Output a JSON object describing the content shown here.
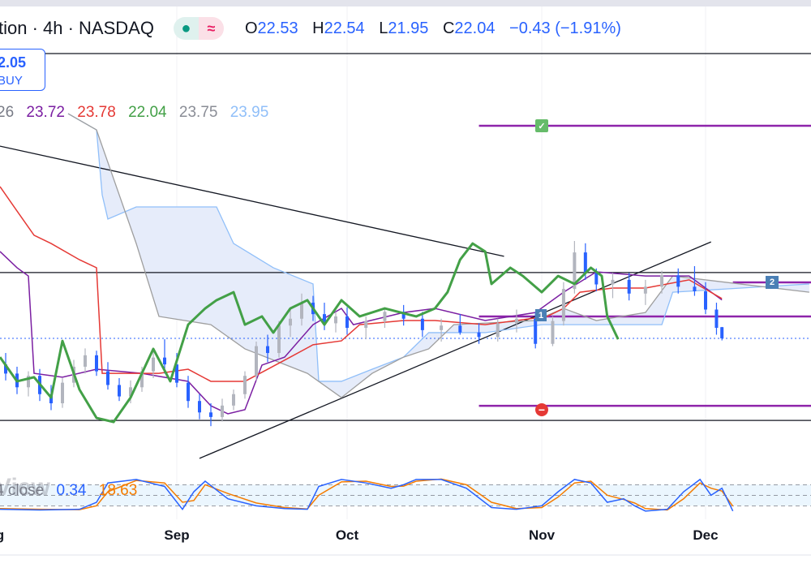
{
  "header": {
    "title": "tion · 4h · NASDAQ",
    "badge_dot": "●",
    "badge_wave": "≈",
    "ohlc": {
      "o_label": "O",
      "o": "22.53",
      "h_label": "H",
      "h": "22.54",
      "l_label": "L",
      "l": "21.95",
      "c_label": "C",
      "c": "22.04",
      "change": "−0.43 (−1.91%)"
    }
  },
  "buy_box": {
    "price": "2.05",
    "label": "BUY"
  },
  "ichimoku_values": [
    {
      "text": "26",
      "color": "#787b86"
    },
    {
      "text": "23.72",
      "color": "#7b1fa2"
    },
    {
      "text": "23.78",
      "color": "#e53935"
    },
    {
      "text": "22.04",
      "color": "#43a047"
    },
    {
      "text": "23.75",
      "color": "#8a8d96"
    },
    {
      "text": "23.95",
      "color": "#90bff9"
    }
  ],
  "stoch_label": {
    "watermark": "View",
    "name": "4 close",
    "k": "0.34",
    "d": "18.63",
    "k_color": "#2962ff",
    "d_color": "#f57c00"
  },
  "x_axis": [
    "g",
    "Sep",
    "Oct",
    "Nov",
    "Dec"
  ],
  "markers": {
    "target": "✓",
    "stop": "−",
    "entry": "1",
    "level2": "2"
  },
  "chart_data": {
    "type": "candlestick",
    "colors": {
      "up": "#b2b5be",
      "down": "#2962ff",
      "lagging": "#43a047",
      "conversion": "#e53935",
      "base": "#7b1fa2",
      "span_a": "#90bff9",
      "span_b": "#9e9e9e",
      "cloud": "#e6ecfa"
    },
    "candles": [
      [
        "08-02",
        20.9,
        21.4,
        20.2,
        20.5
      ],
      [
        "08-04",
        20.5,
        20.8,
        19.6,
        19.9
      ],
      [
        "08-06",
        19.9,
        20.6,
        19.5,
        20.4
      ],
      [
        "08-08",
        20.4,
        20.7,
        19.3,
        19.6
      ],
      [
        "08-10",
        19.6,
        20.0,
        18.9,
        19.2
      ],
      [
        "08-12",
        19.2,
        20.3,
        19.0,
        20.1
      ],
      [
        "08-14",
        20.1,
        21.1,
        19.9,
        20.8
      ],
      [
        "08-16",
        20.8,
        21.6,
        20.5,
        21.3
      ],
      [
        "08-18",
        21.3,
        21.5,
        20.4,
        20.6
      ],
      [
        "08-20",
        20.6,
        21.0,
        19.8,
        20.0
      ],
      [
        "08-22",
        20.0,
        20.3,
        19.3,
        19.5
      ],
      [
        "08-24",
        19.5,
        20.2,
        19.2,
        19.9
      ],
      [
        "08-26",
        19.9,
        20.8,
        19.7,
        20.6
      ],
      [
        "08-28",
        20.6,
        21.6,
        20.3,
        21.2
      ],
      [
        "08-30",
        21.2,
        22.0,
        20.5,
        20.9
      ],
      [
        "09-01",
        20.9,
        21.4,
        19.9,
        20.1
      ],
      [
        "09-03",
        20.1,
        20.4,
        19.0,
        19.3
      ],
      [
        "09-05",
        19.3,
        19.6,
        18.5,
        18.8
      ],
      [
        "09-07",
        18.8,
        19.2,
        18.2,
        18.6
      ],
      [
        "09-09",
        18.6,
        19.4,
        18.4,
        19.1
      ],
      [
        "09-11",
        19.1,
        19.8,
        18.9,
        19.6
      ],
      [
        "09-13",
        19.6,
        20.6,
        19.4,
        20.4
      ],
      [
        "09-15",
        20.4,
        21.9,
        20.2,
        21.7
      ],
      [
        "09-17",
        21.7,
        22.2,
        21.0,
        21.4
      ],
      [
        "09-19",
        21.4,
        22.8,
        21.2,
        22.6
      ],
      [
        "09-21",
        22.6,
        23.3,
        22.1,
        22.9
      ],
      [
        "09-23",
        22.9,
        24.0,
        22.6,
        23.6
      ],
      [
        "09-25",
        23.6,
        23.9,
        22.8,
        23.1
      ],
      [
        "09-27",
        23.1,
        23.6,
        22.4,
        22.7
      ],
      [
        "09-29",
        22.7,
        23.2,
        22.3,
        23.0
      ],
      [
        "10-01",
        23.0,
        23.4,
        22.2,
        22.5
      ],
      [
        "10-04",
        22.5,
        23.0,
        22.0,
        22.8
      ],
      [
        "10-07",
        22.8,
        23.4,
        22.5,
        23.2
      ],
      [
        "10-10",
        23.2,
        23.5,
        22.6,
        22.9
      ],
      [
        "10-13",
        22.9,
        23.2,
        22.1,
        22.4
      ],
      [
        "10-16",
        22.4,
        22.9,
        21.9,
        22.6
      ],
      [
        "10-19",
        22.6,
        23.1,
        22.2,
        22.3
      ],
      [
        "10-22",
        22.3,
        22.7,
        21.8,
        22.1
      ],
      [
        "10-25",
        22.1,
        22.9,
        21.9,
        22.7
      ],
      [
        "10-28",
        22.7,
        23.3,
        22.3,
        22.9
      ],
      [
        "10-31",
        22.9,
        23.2,
        21.6,
        21.8
      ],
      [
        "11-03",
        21.8,
        23.0,
        21.7,
        22.8
      ],
      [
        "11-05",
        22.8,
        24.5,
        22.6,
        24.2
      ],
      [
        "11-07",
        24.2,
        26.3,
        24.0,
        25.8
      ],
      [
        "11-09",
        25.8,
        26.2,
        24.6,
        24.9
      ],
      [
        "11-11",
        24.9,
        25.1,
        24.1,
        24.4
      ],
      [
        "11-14",
        24.4,
        24.9,
        23.8,
        24.6
      ],
      [
        "11-17",
        24.6,
        24.9,
        23.7,
        24.0
      ],
      [
        "11-20",
        24.0,
        24.6,
        23.5,
        24.3
      ],
      [
        "11-23",
        24.3,
        25.0,
        24.0,
        24.8
      ],
      [
        "11-26",
        24.8,
        25.1,
        24.0,
        24.3
      ],
      [
        "11-29",
        24.3,
        25.2,
        23.9,
        24.1
      ],
      [
        "12-01",
        24.1,
        24.5,
        23.1,
        23.3
      ],
      [
        "12-03",
        23.3,
        23.6,
        22.2,
        22.5
      ],
      [
        "12-04",
        22.53,
        22.54,
        21.95,
        22.04
      ]
    ],
    "lines": {
      "lagging": [
        [
          "08-01",
          21.22
        ],
        [
          "08-04",
          20.16
        ],
        [
          "08-07",
          20.34
        ],
        [
          "08-10",
          19.45
        ],
        [
          "08-12",
          21.93
        ],
        [
          "08-15",
          19.8
        ],
        [
          "08-18",
          18.56
        ],
        [
          "08-21",
          18.38
        ],
        [
          "08-24",
          19.45
        ],
        [
          "08-28",
          21.58
        ],
        [
          "08-31",
          20.16
        ],
        [
          "09-03",
          22.64
        ],
        [
          "09-06",
          23.35
        ],
        [
          "09-08",
          23.71
        ],
        [
          "09-11",
          24.06
        ],
        [
          "09-13",
          22.64
        ],
        [
          "09-16",
          23.0
        ],
        [
          "09-18",
          22.29
        ],
        [
          "09-21",
          23.35
        ],
        [
          "09-24",
          23.71
        ],
        [
          "09-27",
          22.64
        ],
        [
          "09-30",
          23.71
        ],
        [
          "10-03",
          23.0
        ],
        [
          "10-07",
          23.35
        ],
        [
          "10-12",
          23.0
        ],
        [
          "10-15",
          23.35
        ],
        [
          "10-17",
          24.06
        ],
        [
          "10-19",
          25.48
        ],
        [
          "10-21",
          26.19
        ],
        [
          "10-23",
          25.84
        ],
        [
          "10-24",
          24.42
        ],
        [
          "10-27",
          25.13
        ],
        [
          "10-29",
          24.77
        ],
        [
          "11-01",
          24.06
        ],
        [
          "11-04",
          24.77
        ],
        [
          "11-07",
          24.42
        ],
        [
          "11-10",
          25.13
        ],
        [
          "11-12",
          24.77
        ],
        [
          "11-13",
          23.0
        ],
        [
          "11-15",
          22.0
        ]
      ],
      "conversion": [
        [
          "08-01",
          28.68
        ],
        [
          "08-04",
          27.61
        ],
        [
          "08-07",
          26.55
        ],
        [
          "08-10",
          26.19
        ],
        [
          "08-15",
          25.48
        ],
        [
          "08-18",
          25.13
        ],
        [
          "08-19",
          20.51
        ],
        [
          "08-29",
          20.51
        ],
        [
          "09-03",
          20.69
        ],
        [
          "09-07",
          20.16
        ],
        [
          "09-13",
          20.16
        ],
        [
          "09-17",
          20.69
        ],
        [
          "09-21",
          21.22
        ],
        [
          "09-25",
          21.76
        ],
        [
          "09-30",
          21.93
        ],
        [
          "10-03",
          22.64
        ],
        [
          "10-10",
          22.82
        ],
        [
          "10-15",
          22.82
        ],
        [
          "10-23",
          22.64
        ],
        [
          "10-28",
          22.82
        ],
        [
          "11-02",
          23.0
        ],
        [
          "11-05",
          23.35
        ],
        [
          "11-08",
          24.06
        ],
        [
          "11-14",
          24.24
        ],
        [
          "11-20",
          24.24
        ],
        [
          "11-28",
          24.6
        ],
        [
          "12-04",
          23.78
        ]
      ],
      "base": [
        [
          "08-01",
          25.84
        ],
        [
          "08-04",
          25.13
        ],
        [
          "08-06",
          24.77
        ],
        [
          "08-07",
          20.51
        ],
        [
          "08-12",
          20.34
        ],
        [
          "08-18",
          20.69
        ],
        [
          "08-26",
          20.51
        ],
        [
          "09-03",
          20.16
        ],
        [
          "09-07",
          19.09
        ],
        [
          "09-10",
          18.74
        ],
        [
          "09-13",
          18.92
        ],
        [
          "09-16",
          20.87
        ],
        [
          "09-20",
          21.22
        ],
        [
          "09-25",
          22.64
        ],
        [
          "09-30",
          23.35
        ],
        [
          "10-02",
          22.64
        ],
        [
          "10-10",
          23.17
        ],
        [
          "10-15",
          23.35
        ],
        [
          "10-23",
          22.82
        ],
        [
          "10-31",
          23.17
        ],
        [
          "11-05",
          24.06
        ],
        [
          "11-11",
          24.95
        ],
        [
          "11-20",
          24.77
        ],
        [
          "11-28",
          24.77
        ],
        [
          "12-04",
          23.72
        ]
      ],
      "span_a": [
        [
          "08-13",
          31.87
        ],
        [
          "08-18",
          31.16
        ],
        [
          "08-19",
          28.32
        ],
        [
          "08-20",
          27.26
        ],
        [
          "08-25",
          27.79
        ],
        [
          "09-08",
          27.79
        ],
        [
          "09-11",
          26.19
        ],
        [
          "09-18",
          25.13
        ],
        [
          "09-25",
          24.42
        ],
        [
          "09-26",
          20.16
        ],
        [
          "09-30",
          20.16
        ],
        [
          "10-05",
          20.69
        ],
        [
          "10-10",
          21.22
        ],
        [
          "10-14",
          22.29
        ],
        [
          "10-23",
          22.29
        ],
        [
          "11-01",
          22.64
        ],
        [
          "11-08",
          22.64
        ],
        [
          "11-23",
          22.64
        ],
        [
          "11-25",
          24.06
        ],
        [
          "12-20",
          24.42
        ]
      ],
      "span_b": [
        [
          "08-13",
          31.87
        ],
        [
          "08-18",
          31.16
        ],
        [
          "08-25",
          26.19
        ],
        [
          "08-29",
          23.0
        ],
        [
          "09-07",
          22.64
        ],
        [
          "09-13",
          21.58
        ],
        [
          "09-24",
          20.51
        ],
        [
          "09-30",
          19.45
        ],
        [
          "10-05",
          20.51
        ],
        [
          "10-10",
          21.22
        ],
        [
          "10-14",
          21.58
        ],
        [
          "10-18",
          22.64
        ],
        [
          "10-31",
          22.82
        ],
        [
          "11-05",
          23.35
        ],
        [
          "11-11",
          22.82
        ],
        [
          "11-20",
          23.17
        ],
        [
          "11-25",
          24.77
        ],
        [
          "12-20",
          24.06
        ]
      ]
    },
    "horizontal_levels": [
      {
        "price": 34.5,
        "color": "#131722",
        "from": "08-01"
      },
      {
        "price": 31.34,
        "color": "#8e24aa",
        "from": "10-22",
        "marker": "target"
      },
      {
        "price": 24.92,
        "color": "#131722",
        "from": "08-01"
      },
      {
        "price": 24.49,
        "color": "#8e24aa",
        "from": "12-06",
        "marker": "level2"
      },
      {
        "price": 23.0,
        "color": "#8e24aa",
        "from": "10-22",
        "marker": "entry"
      },
      {
        "price": 19.09,
        "color": "#8e24aa",
        "from": "10-22",
        "marker": "stop"
      },
      {
        "price": 18.45,
        "color": "#131722",
        "from": "08-01"
      }
    ],
    "last_price": 22.04,
    "trendlines": [
      [
        [
          "08-01",
          30.45
        ],
        [
          "10-26",
          25.63
        ]
      ],
      [
        [
          "09-05",
          16.79
        ],
        [
          "12-02",
          26.26
        ]
      ]
    ],
    "stochastic": {
      "levels": [
        80,
        50,
        20
      ],
      "k": [
        [
          "08-01",
          10
        ],
        [
          "08-08",
          8
        ],
        [
          "08-15",
          10
        ],
        [
          "08-18",
          30
        ],
        [
          "08-20",
          85
        ],
        [
          "08-25",
          95
        ],
        [
          "08-30",
          75
        ],
        [
          "09-02",
          10
        ],
        [
          "09-04",
          60
        ],
        [
          "09-06",
          90
        ],
        [
          "09-10",
          40
        ],
        [
          "09-15",
          20
        ],
        [
          "09-20",
          12
        ],
        [
          "09-24",
          10
        ],
        [
          "09-26",
          75
        ],
        [
          "09-30",
          95
        ],
        [
          "10-04",
          85
        ],
        [
          "10-08",
          70
        ],
        [
          "10-10",
          80
        ],
        [
          "10-12",
          95
        ],
        [
          "10-16",
          95
        ],
        [
          "10-20",
          70
        ],
        [
          "10-24",
          15
        ],
        [
          "10-28",
          10
        ],
        [
          "11-01",
          20
        ],
        [
          "11-04",
          60
        ],
        [
          "11-07",
          95
        ],
        [
          "11-10",
          85
        ],
        [
          "11-13",
          30
        ],
        [
          "11-16",
          40
        ],
        [
          "11-18",
          20
        ],
        [
          "11-20",
          5
        ],
        [
          "11-24",
          10
        ],
        [
          "11-27",
          60
        ],
        [
          "11-30",
          95
        ],
        [
          "12-02",
          50
        ],
        [
          "12-04",
          70
        ],
        [
          "12-06",
          5
        ]
      ],
      "d": [
        [
          "08-01",
          12
        ],
        [
          "08-08",
          10
        ],
        [
          "08-15",
          9
        ],
        [
          "08-18",
          20
        ],
        [
          "08-20",
          60
        ],
        [
          "08-25",
          92
        ],
        [
          "08-30",
          85
        ],
        [
          "09-02",
          30
        ],
        [
          "09-04",
          35
        ],
        [
          "09-06",
          80
        ],
        [
          "09-10",
          55
        ],
        [
          "09-15",
          28
        ],
        [
          "09-20",
          15
        ],
        [
          "09-24",
          11
        ],
        [
          "09-26",
          50
        ],
        [
          "09-30",
          88
        ],
        [
          "10-04",
          90
        ],
        [
          "10-08",
          75
        ],
        [
          "10-10",
          76
        ],
        [
          "10-12",
          90
        ],
        [
          "10-16",
          96
        ],
        [
          "10-20",
          80
        ],
        [
          "10-24",
          30
        ],
        [
          "10-28",
          12
        ],
        [
          "11-01",
          15
        ],
        [
          "11-04",
          45
        ],
        [
          "11-07",
          85
        ],
        [
          "11-10",
          90
        ],
        [
          "11-13",
          50
        ],
        [
          "11-16",
          38
        ],
        [
          "11-18",
          28
        ],
        [
          "11-20",
          12
        ],
        [
          "11-24",
          8
        ],
        [
          "11-27",
          40
        ],
        [
          "11-30",
          85
        ],
        [
          "12-02",
          70
        ],
        [
          "12-04",
          62
        ],
        [
          "12-06",
          19
        ]
      ]
    }
  }
}
